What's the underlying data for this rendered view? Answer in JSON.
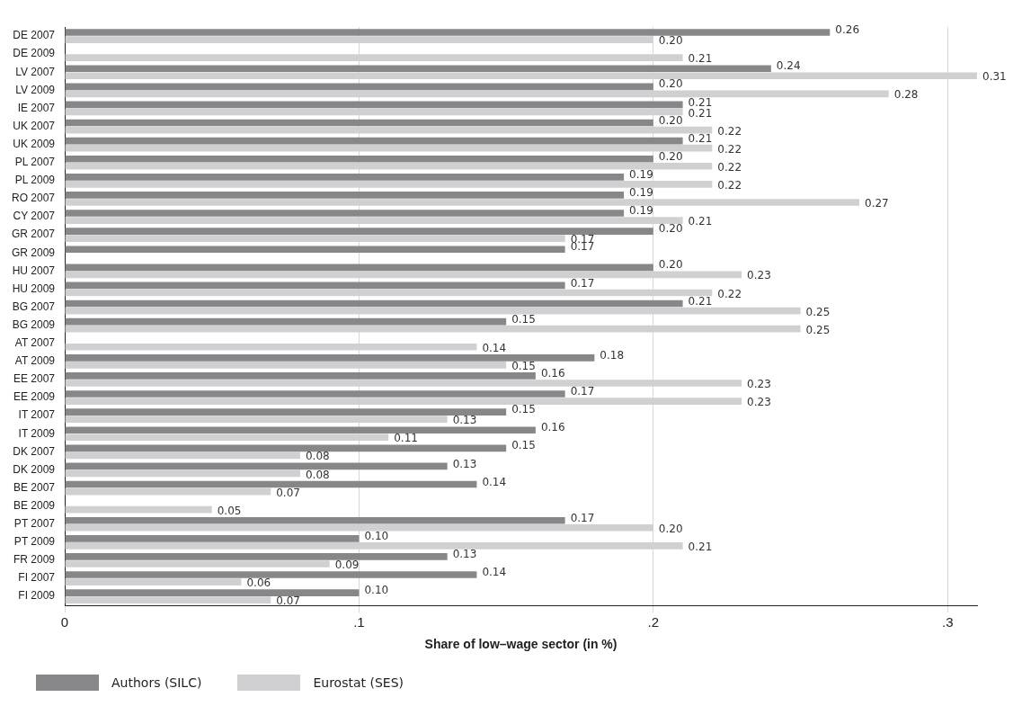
{
  "chart_data": {
    "type": "bar",
    "orientation": "horizontal",
    "xlabel": "Share of low–wage sector (in %)",
    "categories": [
      "DE 2007",
      "DE 2009",
      "LV 2007",
      "LV 2009",
      "IE 2007",
      "UK 2007",
      "UK 2009",
      "PL 2007",
      "PL 2009",
      "RO 2007",
      "CY 2007",
      "GR 2007",
      "GR 2009",
      "HU 2007",
      "HU 2009",
      "BG 2007",
      "BG 2009",
      "AT 2007",
      "AT 2009",
      "EE 2007",
      "EE 2009",
      "IT 2007",
      "IT 2009",
      "DK 2007",
      "DK 2009",
      "BE 2007",
      "BE 2009",
      "PT 2007",
      "PT 2009",
      "FR 2009",
      "FI 2007",
      "FI 2009"
    ],
    "series": [
      {
        "name": "Authors (SILC)",
        "color": "#87878a",
        "values": [
          0.26,
          null,
          0.24,
          0.2,
          0.21,
          0.2,
          0.21,
          0.2,
          0.19,
          0.19,
          0.19,
          0.2,
          0.17,
          0.2,
          0.17,
          0.21,
          0.15,
          null,
          0.18,
          0.16,
          0.17,
          0.15,
          0.16,
          0.15,
          0.13,
          0.14,
          null,
          0.17,
          0.1,
          0.13,
          0.14,
          0.1
        ],
        "value_labels": [
          "0.26",
          null,
          "0.24",
          "0.20",
          "0.21",
          "0.20",
          "0.21",
          "0.20",
          "0.19",
          "0.19",
          "0.19",
          "0.20",
          "0.17",
          "0.20",
          "0.17",
          "0.21",
          "0.15",
          null,
          "0.18",
          "0.16",
          "0.17",
          "0.15",
          "0.16",
          "0.15",
          "0.13",
          "0.14",
          null,
          "0.17",
          "0.10",
          "0.13",
          "0.14",
          "0.10"
        ]
      },
      {
        "name": "Eurostat (SES)",
        "color": "#d0d0d2",
        "values": [
          0.2,
          0.21,
          0.31,
          0.28,
          0.21,
          0.22,
          0.22,
          0.22,
          0.22,
          0.27,
          0.21,
          0.17,
          null,
          0.23,
          0.22,
          0.25,
          0.25,
          0.14,
          0.15,
          0.23,
          0.23,
          0.13,
          0.11,
          0.08,
          0.08,
          0.07,
          0.05,
          0.2,
          0.21,
          0.09,
          0.06,
          0.07
        ],
        "value_labels": [
          "0.20",
          "0.21",
          "0.31",
          "0.28",
          "0.21",
          "0.22",
          "0.22",
          "0.22",
          "0.22",
          "0.27",
          "0.21",
          "0.17",
          null,
          "0.23",
          "0.22",
          "0.25",
          "0.25",
          "0.14",
          "0.15",
          "0.23",
          "0.23",
          "0.13",
          "0.11",
          "0.08",
          "0.08",
          "0.07",
          "0.05",
          "0.20",
          "0.21",
          "0.09",
          "0.06",
          "0.07"
        ]
      }
    ],
    "xlim": [
      0,
      0.31
    ],
    "xticks": [
      0,
      {
        "value": 0.1,
        "label": ".1"
      },
      {
        "value": 0.2,
        "label": ".2"
      },
      {
        "value": 0.3,
        "label": ".3"
      }
    ],
    "grid": "x",
    "legend": "bottom"
  }
}
